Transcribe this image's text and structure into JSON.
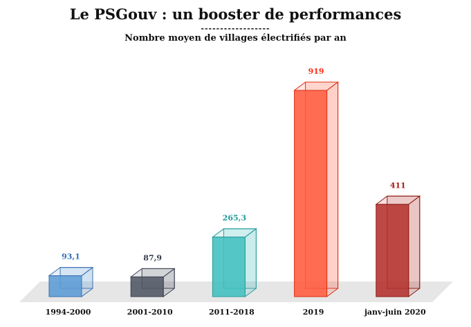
{
  "header": {
    "title": "Le PSGouv  : un booster  de performances",
    "separator": "------------------",
    "subtitle": "Nombre moyen de villages électrifiés par an"
  },
  "chart_data": {
    "type": "bar",
    "style": "3d-column",
    "title": "Le PSGouv  : un booster  de performances",
    "subtitle": "Nombre moyen de villages électrifiés par an",
    "categories": [
      "1994-2000",
      "2001-2010",
      "2011-2018",
      "2019",
      "janv-juin 2020"
    ],
    "values": [
      93.1,
      87.9,
      265.3,
      919,
      411
    ],
    "value_labels": [
      "93,1",
      "87,9",
      "265,3",
      "919",
      "411"
    ],
    "colors": {
      "fills": [
        "#5b9bd5",
        "#4f5563",
        "#40bfbf",
        "#ff5a3d",
        "#b3302b"
      ],
      "edges": [
        "#3a70b0",
        "#3c4250",
        "#2a9a9a",
        "#e02c10",
        "#8f1c16"
      ],
      "labels": [
        "#2f6fb8",
        "#333b48",
        "#1f9a9a",
        "#ff2a10",
        "#a51a10"
      ],
      "floor": "#e6e6e6"
    },
    "xlabel": "",
    "ylabel": "",
    "ylim": [
      0,
      919
    ],
    "grid": false,
    "legend": "none"
  }
}
